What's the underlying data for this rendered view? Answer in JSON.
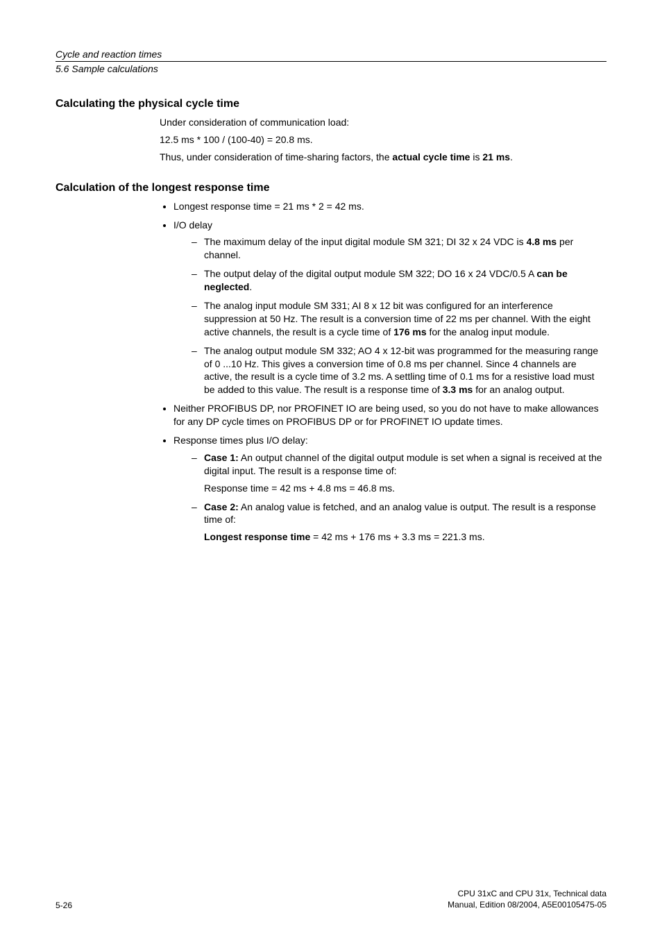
{
  "header": {
    "chapter": "Cycle and reaction times",
    "section": "5.6 Sample calculations"
  },
  "sec1": {
    "heading": "Calculating the physical cycle time",
    "p1": "Under consideration of communication load:",
    "p2": "12.5 ms * 100 / (100-40) = 20.8 ms.",
    "p3_pre": "Thus, under consideration of time-sharing factors, the ",
    "p3_b1": "actual cycle time",
    "p3_mid": " is ",
    "p3_b2": "21 ms",
    "p3_post": "."
  },
  "sec2": {
    "heading": "Calculation of the longest response time",
    "li1": "Longest response time = 21 ms * 2 = 42 ms.",
    "li2": "I/O delay",
    "d1_pre": "The maximum delay of the input digital module SM 321; DI 32 x 24 VDC is ",
    "d1_b": "4.8 ms",
    "d1_post": " per channel.",
    "d2_pre": "The output delay of the digital output module SM 322; DO 16 x 24 VDC/0.5 A ",
    "d2_b": "can be neglected",
    "d2_post": ".",
    "d3_pre": "The analog input module SM 331; AI 8 x 12 bit was configured for an interference suppression at 50 Hz. The result is a conversion time of 22 ms per channel. With the eight active channels, the result is a cycle time of ",
    "d3_b": "176 ms",
    "d3_post": " for the analog input module.",
    "d4_pre": "The analog output module SM 332; AO 4 x 12-bit was programmed for the measuring range of 0 ...10 Hz. This gives a conversion time of 0.8 ms per channel. Since 4 channels are active, the result is a cycle time of 3.2 ms. A settling time of 0.1 ms for a resistive load must be added to this value. The result is a response time of ",
    "d4_b": "3.3 ms",
    "d4_post": " for an analog output.",
    "li3": "Neither PROFIBUS DP, nor PROFINET IO are being used, so you do not have to make allowances for any DP cycle times on PROFIBUS DP or for PROFINET IO update times.",
    "li4": "Response times plus I/O delay:",
    "c1_b": "Case 1:",
    "c1_text": " An output channel of the digital output module is set when a signal is received at the digital input. The result is a response time of:",
    "c1_res": "Response time = 42 ms + 4.8 ms = 46.8 ms.",
    "c2_b": "Case 2:",
    "c2_text": " An analog value is fetched, and an analog value is output. The result is a response time of:",
    "c2_res_b": "Longest response time",
    "c2_res_post": " = 42 ms + 176 ms + 3.3 ms = 221.3 ms."
  },
  "footer": {
    "page": "5-26",
    "line1": "CPU 31xC and CPU 31x, Technical data",
    "line2": "Manual, Edition 08/2004, A5E00105475-05"
  }
}
